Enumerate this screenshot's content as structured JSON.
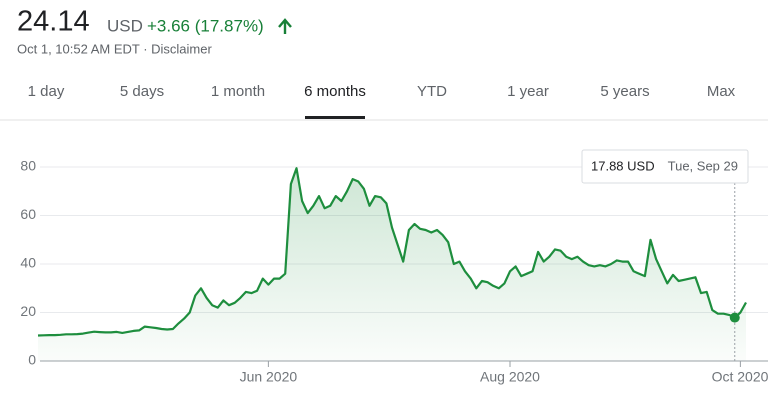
{
  "header": {
    "price": "24.14",
    "currency": "USD",
    "change": "+3.66 (17.87%)",
    "timestamp": "Oct 1, 10:52 AM EDT · Disclaimer"
  },
  "tabs": [
    "1 day",
    "5 days",
    "1 month",
    "6 months",
    "YTD",
    "1 year",
    "5 years",
    "Max"
  ],
  "active_tab": 3,
  "chart_data": {
    "type": "area",
    "color": "#1e8e3e",
    "values": [
      10.5,
      10.6,
      10.7,
      10.7,
      10.8,
      11,
      11,
      11.1,
      11.3,
      11.7,
      12.1,
      11.9,
      11.8,
      11.8,
      12,
      11.6,
      12,
      12.4,
      12.6,
      14.2,
      13.9,
      13.6,
      13.2,
      13,
      13.2,
      15.5,
      17.5,
      20,
      27,
      30,
      26,
      23,
      22,
      25,
      23,
      24,
      26,
      28.5,
      28,
      29,
      34,
      31.5,
      34,
      34,
      36,
      73,
      79.5,
      66,
      61,
      64,
      68,
      63,
      64,
      68,
      66,
      70,
      75,
      74,
      71,
      64,
      68,
      67.5,
      65,
      55,
      48,
      41,
      54,
      56.5,
      54.5,
      54,
      53,
      54,
      52,
      49,
      40,
      41,
      37,
      34,
      30,
      33,
      32.5,
      31,
      30,
      32,
      37,
      39,
      35,
      36,
      37,
      45,
      41,
      43,
      46,
      45.5,
      43,
      42,
      43,
      41,
      39.5,
      39,
      39.5,
      39,
      40,
      41.5,
      41,
      41,
      37,
      36,
      35,
      50,
      42,
      37,
      32,
      35.5,
      33,
      33.5,
      34,
      34.5,
      28,
      28.5,
      21,
      19.5,
      19.5,
      19,
      17.88,
      20,
      24.14
    ],
    "xlim": [
      0,
      126
    ],
    "xticks": [
      {
        "value": 41,
        "label": "Jun 2020"
      },
      {
        "value": 84,
        "label": "Aug 2020"
      },
      {
        "value": 125,
        "label": "Oct 2020"
      }
    ],
    "ylim": [
      0,
      80
    ],
    "yticks": [
      0,
      20,
      40,
      60,
      80
    ],
    "grid": true,
    "tooltip": {
      "price": "17.88 USD",
      "date": "Tue, Sep 29"
    }
  }
}
